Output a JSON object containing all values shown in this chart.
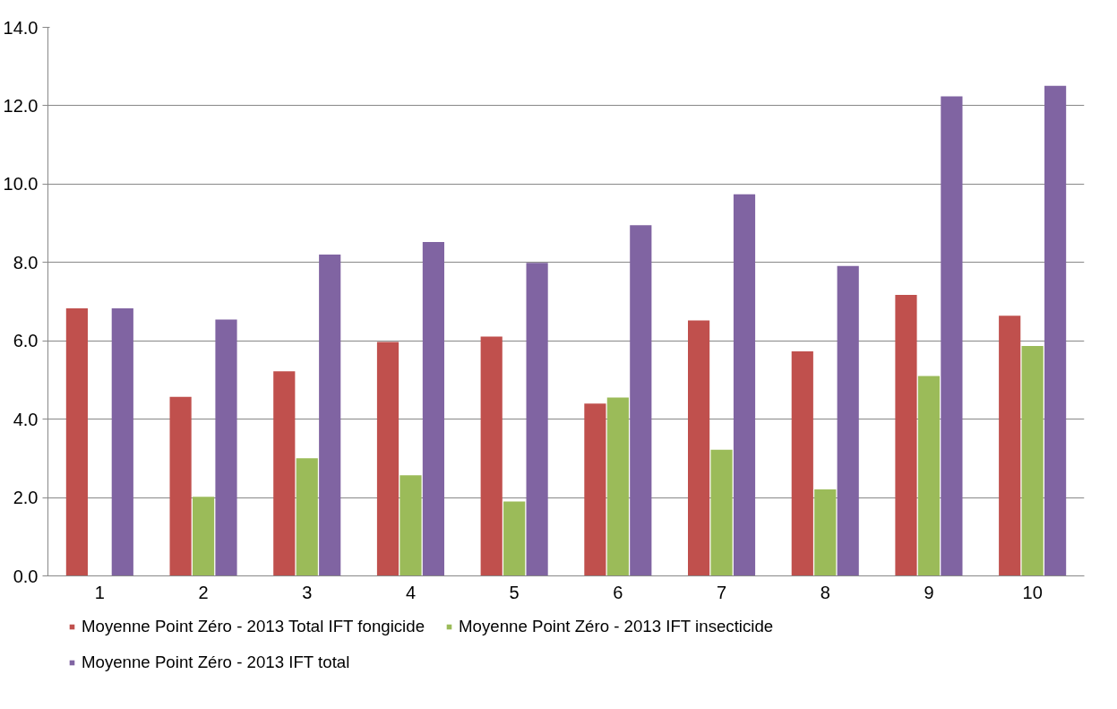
{
  "chart_data": {
    "type": "bar",
    "categories": [
      "1",
      "2",
      "3",
      "4",
      "5",
      "6",
      "7",
      "8",
      "9",
      "10"
    ],
    "series": [
      {
        "name": "Moyenne Point Zéro - 2013 Total IFT fongicide",
        "color": "#c0504d",
        "values": [
          6.83,
          4.57,
          5.22,
          5.97,
          6.11,
          4.4,
          6.52,
          5.73,
          7.17,
          6.64
        ]
      },
      {
        "name": "Moyenne Point Zéro - 2013 IFT insecticide",
        "color": "#9bbb59",
        "values": [
          null,
          2.02,
          3.0,
          2.57,
          1.9,
          4.55,
          3.22,
          2.21,
          5.1,
          5.87
        ]
      },
      {
        "name": "Moyenne Point Zéro - 2013 IFT total",
        "color": "#8064a2",
        "values": [
          6.83,
          6.54,
          8.2,
          8.52,
          7.99,
          8.95,
          9.74,
          7.91,
          12.24,
          12.51
        ]
      }
    ],
    "ylim": [
      0,
      14
    ],
    "yticks": [
      {
        "value": 0,
        "label": "0.0"
      },
      {
        "value": 2,
        "label": "2.0"
      },
      {
        "value": 4,
        "label": "4.0"
      },
      {
        "value": 6,
        "label": "6.0"
      },
      {
        "value": 8,
        "label": "8.0"
      },
      {
        "value": 10,
        "label": "10.0"
      },
      {
        "value": 12,
        "label": "12.0"
      },
      {
        "value": 14,
        "label": "14.0"
      }
    ],
    "grid": "y",
    "legend": "bottom"
  }
}
